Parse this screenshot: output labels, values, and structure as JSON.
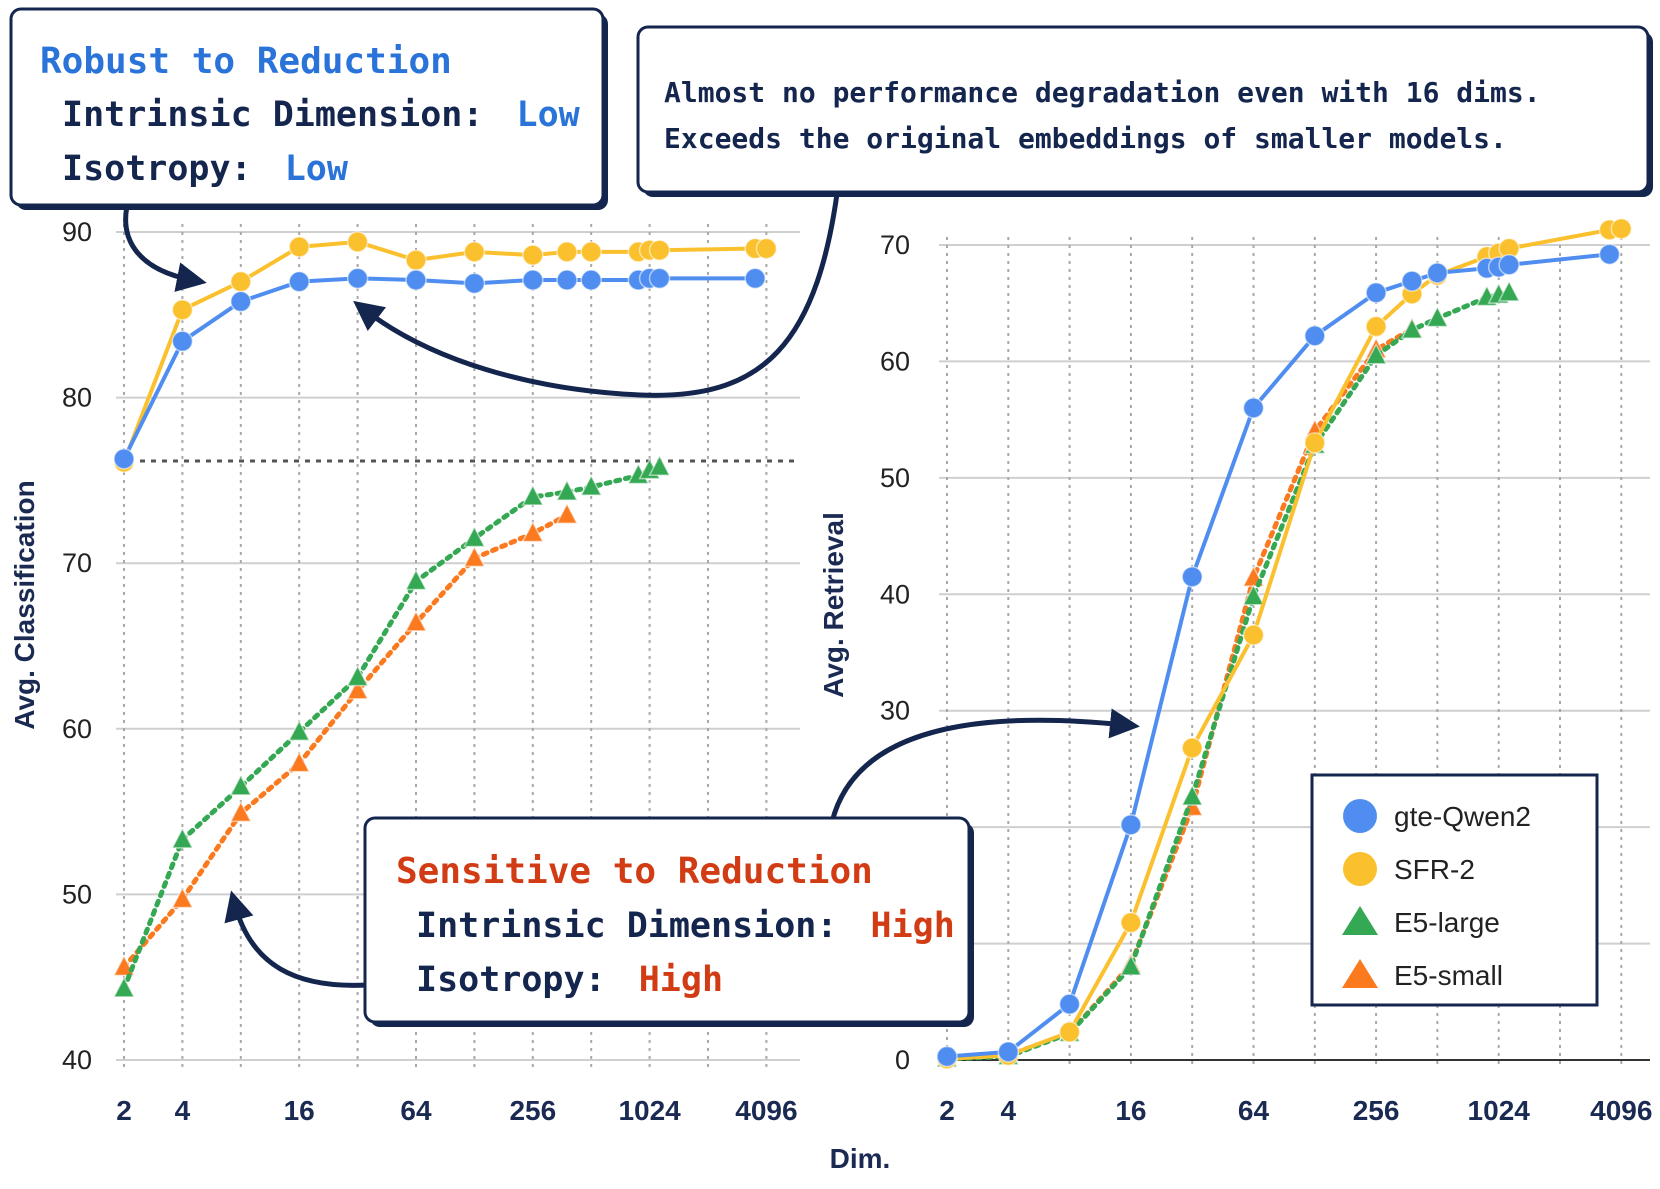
{
  "figure": {
    "x_title": "Dim.",
    "colors": {
      "gte_qwen2": "#4f8ef0",
      "sfr2": "#fbc02d",
      "e5_large": "#34a853",
      "e5_small": "#fb7a1f",
      "navy": "#14264e",
      "blue_text": "#2a73d8",
      "red_text": "#d23c14"
    }
  },
  "callouts": {
    "robust": {
      "heading": "Robust to Reduction",
      "id_label": "Intrinsic Dimension:",
      "id_value": "Low",
      "iso_label": "Isotropy:",
      "iso_value": "Low"
    },
    "degradation": {
      "line1": "Almost no performance degradation even with 16 dims.",
      "line2": "Exceeds the original embeddings of smaller models."
    },
    "sensitive": {
      "heading": "Sensitive to Reduction",
      "id_label": "Intrinsic Dimension:",
      "id_value": "High",
      "iso_label": "Isotropy:",
      "iso_value": "High"
    }
  },
  "chart_data": [
    {
      "type": "line",
      "title": "",
      "xlabel": "Dim.",
      "ylabel": "Avg. Classification",
      "xscale": "log2",
      "xticks": [
        2,
        4,
        16,
        64,
        256,
        1024,
        4096
      ],
      "xtick_labels": [
        "2",
        "4",
        "16",
        "64",
        "256",
        "1024",
        "4096"
      ],
      "ylim": [
        40,
        90
      ],
      "yticks": [
        40,
        50,
        60,
        70,
        80,
        90
      ],
      "grid": true,
      "reference_line": 76.2,
      "series": [
        {
          "name": "gte-Qwen2",
          "marker": "circle",
          "style": "solid",
          "x": [
            2,
            4,
            8,
            16,
            32,
            64,
            128,
            256,
            384,
            512,
            896,
            1024,
            1152,
            3584
          ],
          "y": [
            76.3,
            83.4,
            85.8,
            87.0,
            87.2,
            87.1,
            86.9,
            87.1,
            87.1,
            87.1,
            87.1,
            87.2,
            87.2,
            87.2
          ]
        },
        {
          "name": "SFR-2",
          "marker": "circle",
          "style": "solid",
          "x": [
            2,
            4,
            8,
            16,
            32,
            64,
            128,
            256,
            384,
            512,
            896,
            1024,
            1152,
            3584,
            4096
          ],
          "y": [
            76.1,
            85.3,
            87.0,
            89.1,
            89.4,
            88.3,
            88.8,
            88.6,
            88.8,
            88.8,
            88.8,
            88.9,
            88.9,
            89.0,
            89.0
          ]
        },
        {
          "name": "E5-large",
          "marker": "triangle",
          "style": "dotted",
          "x": [
            2,
            4,
            8,
            16,
            32,
            64,
            128,
            256,
            384,
            512,
            896,
            1024,
            1152
          ],
          "y": [
            44.3,
            53.3,
            56.5,
            59.8,
            63.1,
            68.9,
            71.5,
            74.0,
            74.3,
            74.6,
            75.3,
            75.6,
            75.8
          ]
        },
        {
          "name": "E5-small",
          "marker": "triangle",
          "style": "dotted",
          "x": [
            2,
            4,
            8,
            16,
            32,
            64,
            128,
            256,
            384
          ],
          "y": [
            45.6,
            49.7,
            54.9,
            57.9,
            62.3,
            66.4,
            70.3,
            71.8,
            72.9
          ]
        }
      ]
    },
    {
      "type": "line",
      "title": "",
      "xlabel": "Dim.",
      "ylabel": "Avg. Retrieval",
      "xscale": "log2",
      "xticks": [
        2,
        4,
        16,
        64,
        256,
        1024,
        4096
      ],
      "xtick_labels": [
        "2",
        "4",
        "16",
        "64",
        "256",
        "1024",
        "4096"
      ],
      "ylim": [
        0,
        70
      ],
      "yticks": [
        0,
        10,
        20,
        30,
        40,
        50,
        60,
        70
      ],
      "ytick_labels": [
        "0",
        "",
        "",
        "30",
        "40",
        "50",
        "60",
        "70"
      ],
      "grid": true,
      "legend": "bottom-right",
      "series": [
        {
          "name": "gte-Qwen2",
          "marker": "circle",
          "style": "solid",
          "x": [
            2,
            4,
            8,
            16,
            32,
            64,
            128,
            256,
            384,
            512,
            896,
            1024,
            1152,
            3584
          ],
          "y": [
            0.3,
            0.7,
            4.8,
            20.2,
            41.5,
            56.0,
            62.2,
            65.9,
            66.9,
            67.6,
            68.0,
            68.1,
            68.3,
            69.2
          ]
        },
        {
          "name": "SFR-2",
          "marker": "circle",
          "style": "solid",
          "x": [
            2,
            4,
            8,
            16,
            32,
            64,
            128,
            256,
            384,
            512,
            896,
            1024,
            1152,
            3584,
            4096
          ],
          "y": [
            0.1,
            0.4,
            2.4,
            11.8,
            26.8,
            36.5,
            53.0,
            63.0,
            65.8,
            67.4,
            69.0,
            69.3,
            69.7,
            71.3,
            71.4
          ]
        },
        {
          "name": "E5-large",
          "marker": "triangle",
          "style": "dotted",
          "x": [
            2,
            4,
            8,
            16,
            32,
            64,
            128,
            256,
            384,
            512,
            896,
            1024,
            1152
          ],
          "y": [
            0.1,
            0.3,
            2.3,
            8.0,
            22.6,
            39.8,
            52.8,
            60.5,
            62.7,
            63.7,
            65.5,
            65.7,
            65.9
          ]
        },
        {
          "name": "E5-small",
          "marker": "triangle",
          "style": "dotted",
          "x": [
            2,
            4,
            8,
            16,
            32,
            64,
            128,
            256,
            384
          ],
          "y": [
            0.1,
            0.4,
            2.3,
            8.2,
            21.7,
            41.4,
            54.0,
            61.0,
            62.8
          ]
        }
      ]
    }
  ]
}
